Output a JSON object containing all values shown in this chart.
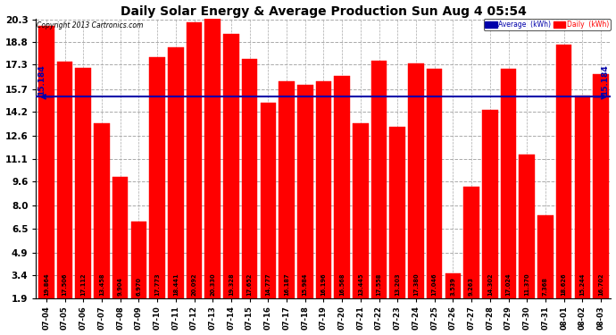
{
  "title": "Daily Solar Energy & Average Production Sun Aug 4 05:54",
  "copyright": "Copyright 2013 Cartronics.com",
  "average_value": 15.184,
  "average_label": "15.184",
  "bar_color": "#ff0000",
  "average_line_color": "#0000aa",
  "background_color": "#ffffff",
  "plot_bg_color": "#ffffff",
  "categories": [
    "07-04",
    "07-05",
    "07-06",
    "07-07",
    "07-08",
    "07-09",
    "07-10",
    "07-11",
    "07-12",
    "07-13",
    "07-14",
    "07-15",
    "07-16",
    "07-17",
    "07-18",
    "07-19",
    "07-20",
    "07-21",
    "07-22",
    "07-23",
    "07-24",
    "07-25",
    "07-26",
    "07-27",
    "07-28",
    "07-29",
    "07-30",
    "07-31",
    "08-01",
    "08-02",
    "08-03"
  ],
  "values": [
    19.864,
    17.506,
    17.112,
    13.458,
    9.904,
    6.97,
    17.773,
    18.441,
    20.092,
    20.33,
    19.328,
    17.652,
    14.777,
    16.187,
    15.984,
    16.196,
    16.568,
    13.445,
    17.558,
    13.203,
    17.38,
    17.046,
    3.539,
    9.263,
    14.302,
    17.024,
    11.37,
    7.368,
    18.626,
    15.244,
    16.702
  ],
  "yticks": [
    1.9,
    3.4,
    4.9,
    6.5,
    8.0,
    9.6,
    11.1,
    12.6,
    14.2,
    15.7,
    17.3,
    18.8,
    20.3
  ],
  "ymin": 1.9,
  "ymax": 20.3,
  "legend_avg_color": "#0000aa",
  "legend_daily_color": "#ff0000",
  "legend_avg_text": "Average  (kWh)",
  "legend_daily_text": "Daily  (kWh)"
}
